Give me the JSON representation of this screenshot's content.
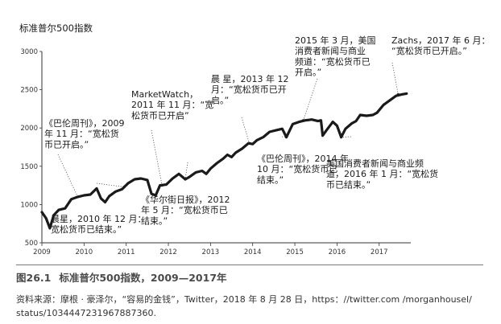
{
  "chart_data": {
    "type": "line",
    "title": "标准普尔500指数",
    "ylim": [
      500,
      3000
    ],
    "xlim": [
      2009,
      2017.75
    ],
    "yticks": [
      500,
      1000,
      1500,
      2000,
      2500,
      3000
    ],
    "xticks": [
      "2009",
      "2010",
      "2011",
      "2012",
      "2013",
      "2014",
      "2015",
      "2016",
      "2017"
    ],
    "grid": false,
    "series": [
      {
        "x": [
          2009.0,
          2009.1,
          2009.19,
          2009.28,
          2009.4,
          2009.55,
          2009.7,
          2009.85,
          2010.0,
          2010.15,
          2010.3,
          2010.4,
          2010.5,
          2010.6,
          2010.75,
          2010.9,
          2011.05,
          2011.2,
          2011.35,
          2011.5,
          2011.6,
          2011.7,
          2011.8,
          2011.95,
          2012.1,
          2012.25,
          2012.4,
          2012.5,
          2012.65,
          2012.8,
          2012.9,
          2013.0,
          2013.15,
          2013.3,
          2013.4,
          2013.5,
          2013.6,
          2013.75,
          2013.9,
          2014.0,
          2014.1,
          2014.25,
          2014.4,
          2014.55,
          2014.7,
          2014.8,
          2014.95,
          2015.1,
          2015.25,
          2015.4,
          2015.55,
          2015.62,
          2015.66,
          2015.75,
          2015.9,
          2016.0,
          2016.1,
          2016.2,
          2016.35,
          2016.45,
          2016.55,
          2016.7,
          2016.85,
          2016.95,
          2017.1,
          2017.25,
          2017.4,
          2017.55,
          2017.65
        ],
        "values": [
          900,
          820,
          690,
          860,
          930,
          950,
          1070,
          1100,
          1120,
          1130,
          1210,
          1080,
          1030,
          1110,
          1170,
          1200,
          1280,
          1330,
          1340,
          1320,
          1140,
          1120,
          1250,
          1260,
          1340,
          1400,
          1330,
          1360,
          1420,
          1440,
          1400,
          1470,
          1540,
          1600,
          1650,
          1620,
          1680,
          1730,
          1800,
          1790,
          1840,
          1880,
          1950,
          1970,
          1990,
          1880,
          2050,
          2080,
          2100,
          2110,
          2090,
          2100,
          1900,
          1970,
          2080,
          2030,
          1880,
          1990,
          2060,
          2090,
          2170,
          2160,
          2170,
          2200,
          2300,
          2360,
          2420,
          2440,
          2450
        ]
      }
    ],
    "annotations": [
      {
        "lines": [
          "《巴伦周刊》，2009",
          "年 11 月：“宽松货",
          "币已开启。”"
        ],
        "at": [
          2009.85,
          1100
        ]
      },
      {
        "lines": [
          "MarketWatch，",
          "2011 年 11 月：“宽",
          "松货币已开启”"
        ],
        "at": [
          2011.85,
          1250
        ]
      },
      {
        "lines": [
          "晨 星，2013 年 12",
          "月：“宽松货币已开",
          "启。”"
        ],
        "at": [
          2013.92,
          1800
        ]
      },
      {
        "lines": [
          "2015 年 3 月，美国",
          "消费者新闻与商业",
          "频道：“宽松货币已",
          "开启。”"
        ],
        "at": [
          2015.2,
          2100
        ]
      },
      {
        "lines": [
          "Zachs，2017 年 6 月：",
          "“宽松货币已开启。”"
        ],
        "at": [
          2017.45,
          2440
        ]
      },
      {
        "lines": [
          "晨星，2010 年 12 月：",
          "宽松货币已结束。”"
        ],
        "at": [
          2010.95,
          1230
        ]
      },
      {
        "lines": [
          "《华尔街日报》，2012",
          "年 5 月：“宽松货币已",
          "结束。”"
        ],
        "at": [
          2012.4,
          1330
        ]
      },
      {
        "lines": [
          "《巴伦周刊》，2014 年",
          "10 月：“宽松货币已",
          "结束。”"
        ],
        "at": [
          2014.8,
          1880
        ]
      },
      {
        "lines": [
          "美国消费者新闻与商业频",
          "道，2016 年 1 月：“宽松货",
          "币已结束。”"
        ],
        "at": [
          2016.1,
          1880
        ]
      }
    ]
  },
  "figure": {
    "number": "图26.1",
    "caption": "标准普尔500指数，2009—2017年",
    "source_lines": [
      "资料来源：摩根 · 豪泽尔，“容易的金钱”，Twitter，2018 年 8 月 28 日，https：//twitter.com /morganhousel/",
      "status/1034447231967887360."
    ]
  },
  "colors": {
    "line": "#1a1a1a",
    "axis": "#333333",
    "caption": "#4a4a4a"
  }
}
